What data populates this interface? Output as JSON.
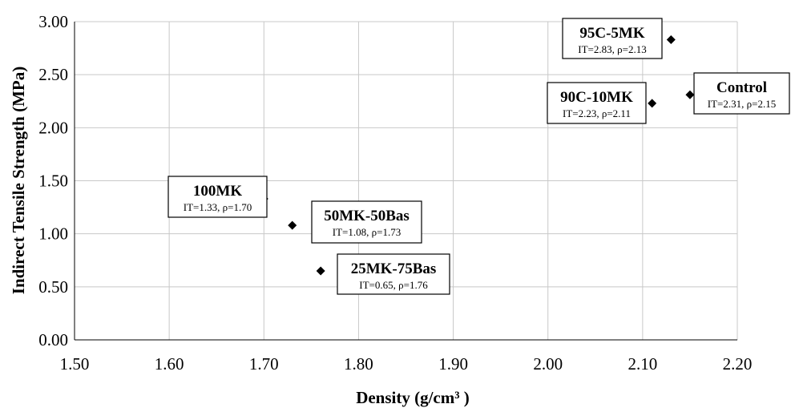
{
  "chart_data": {
    "type": "scatter",
    "xlabel": "Density (g/cm³ )",
    "ylabel": "Indirect Tensile Strength (MPa)",
    "xlim": [
      1.5,
      2.2
    ],
    "ylim": [
      0.0,
      3.0
    ],
    "x_ticks": [
      "1.50",
      "1.60",
      "1.70",
      "1.80",
      "1.90",
      "2.00",
      "2.10",
      "2.20"
    ],
    "y_ticks": [
      "0.00",
      "0.50",
      "1.00",
      "1.50",
      "2.00",
      "2.50",
      "3.00"
    ],
    "grid": true,
    "marker": "diamond",
    "marker_color": "#000000",
    "points": [
      {
        "label": "100MK",
        "detail": "IT=1.33, ρ=1.70",
        "x": 1.7,
        "y": 1.33
      },
      {
        "label": "50MK-50Bas",
        "detail": "IT=1.08, ρ=1.73",
        "x": 1.73,
        "y": 1.08
      },
      {
        "label": "25MK-75Bas",
        "detail": "IT=0.65, ρ=1.76",
        "x": 1.76,
        "y": 0.65
      },
      {
        "label": "95C-5MK",
        "detail": "IT=2.83, ρ=2.13",
        "x": 2.13,
        "y": 2.83
      },
      {
        "label": "90C-10MK",
        "detail": "IT=2.23, ρ=2.11",
        "x": 2.11,
        "y": 2.23
      },
      {
        "label": "Control",
        "detail": "IT=2.31, ρ=2.15",
        "x": 2.15,
        "y": 2.31
      }
    ]
  }
}
